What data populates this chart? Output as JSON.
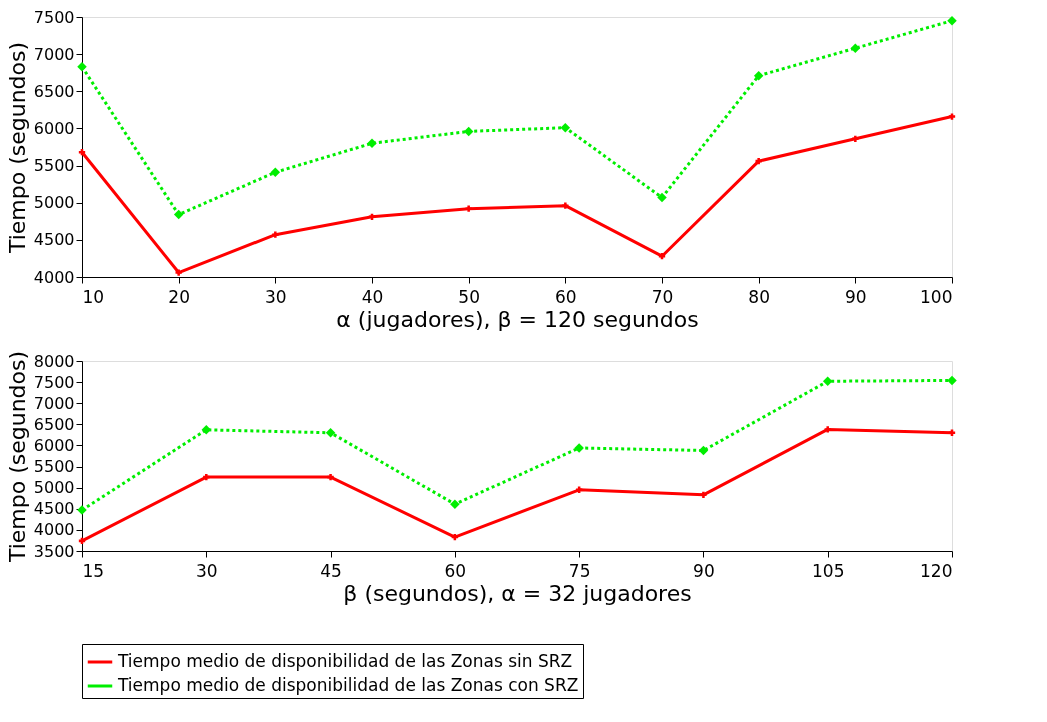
{
  "chart_data": [
    {
      "type": "line",
      "xlabel": "α (jugadores), β = 120 segundos",
      "ylabel": "Tiempo (segundos)",
      "xlim": [
        10,
        100
      ],
      "xticks": [
        10,
        20,
        30,
        40,
        50,
        60,
        70,
        80,
        90,
        100
      ],
      "ylim": [
        4000,
        7500
      ],
      "yticks": [
        4000,
        4500,
        5000,
        5500,
        6000,
        6500,
        7000,
        7500
      ],
      "grid": false,
      "legend": false,
      "series": [
        {
          "color": "#ff0000",
          "marker": "cross",
          "line_style": "solid",
          "x": [
            10,
            20,
            30,
            40,
            50,
            60,
            70,
            80,
            90,
            100
          ],
          "values": [
            5680,
            4060,
            4570,
            4810,
            4920,
            4960,
            4280,
            5560,
            5860,
            6160
          ]
        },
        {
          "color": "#00ee00",
          "marker": "diamond",
          "line_style": "dotted",
          "x": [
            10,
            20,
            30,
            40,
            50,
            60,
            70,
            80,
            90,
            100
          ],
          "values": [
            6830,
            4840,
            5410,
            5800,
            5960,
            6010,
            5070,
            6710,
            7080,
            7450
          ]
        }
      ]
    },
    {
      "type": "line",
      "xlabel": "β (segundos), α = 32 jugadores",
      "ylabel": "Tiempo (segundos)",
      "xlim": [
        15,
        120
      ],
      "xticks": [
        15,
        30,
        45,
        60,
        75,
        90,
        105,
        120
      ],
      "ylim": [
        3500,
        8000
      ],
      "yticks": [
        3500,
        4000,
        4500,
        5000,
        5500,
        6000,
        6500,
        7000,
        7500,
        8000
      ],
      "grid": false,
      "legend": "bottom",
      "series": [
        {
          "name": "Tiempo medio de disponibilidad de las Zonas sin SRZ",
          "color": "#ff0000",
          "marker": "cross",
          "line_style": "solid",
          "x": [
            15,
            30,
            45,
            60,
            75,
            90,
            105,
            120
          ],
          "values": [
            3740,
            5250,
            5250,
            3830,
            4950,
            4830,
            6380,
            6300
          ]
        },
        {
          "name": "Tiempo medio de disponibilidad de las Zonas con SRZ",
          "color": "#00ee00",
          "marker": "diamond",
          "line_style": "dotted",
          "x": [
            15,
            30,
            45,
            60,
            75,
            90,
            105,
            120
          ],
          "values": [
            4470,
            6370,
            6300,
            4610,
            5940,
            5880,
            7520,
            7540
          ]
        }
      ]
    }
  ]
}
